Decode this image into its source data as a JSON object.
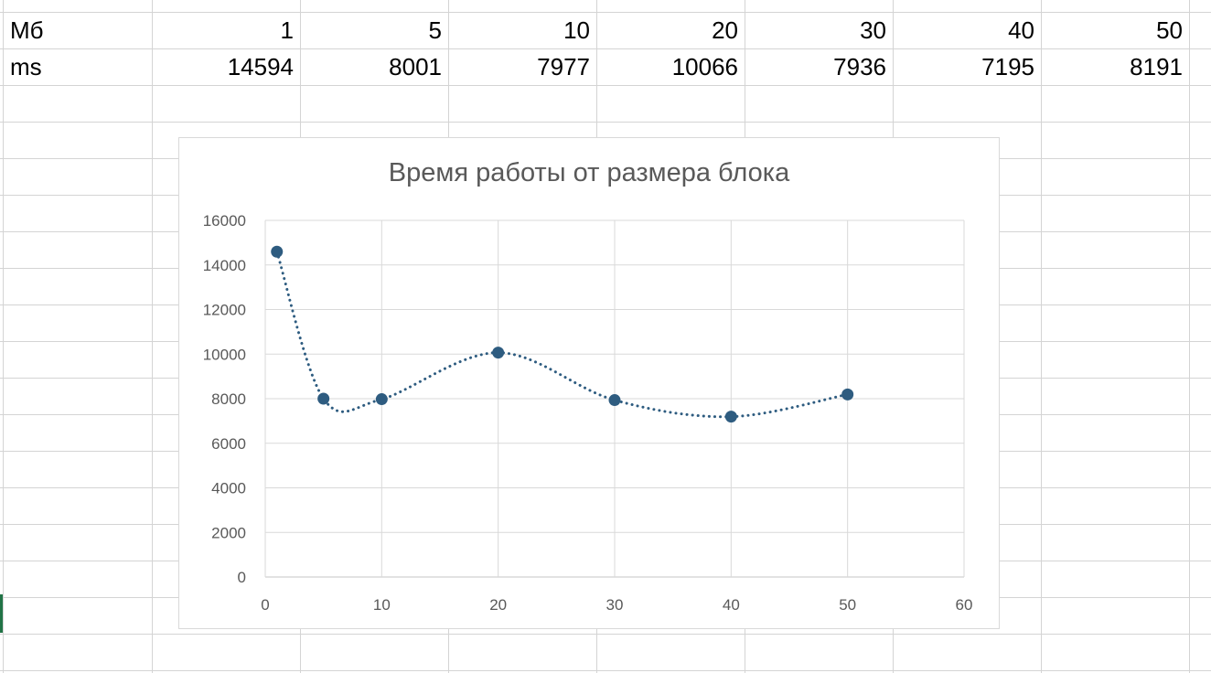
{
  "table": {
    "rows": [
      {
        "label": "Мб",
        "values": [
          "1",
          "5",
          "10",
          "20",
          "30",
          "40",
          "50"
        ]
      },
      {
        "label": "ms",
        "values": [
          "14594",
          "8001",
          "7977",
          "10066",
          "7936",
          "7195",
          "8191"
        ]
      }
    ]
  },
  "colors": {
    "series": "#2e5c80",
    "gridline": "#d9d9d9",
    "cell_border": "#d4d4d4",
    "text_gray": "#595959",
    "left_marker": "#217346"
  },
  "chart_data": {
    "type": "scatter",
    "title": "Время работы от размера блока",
    "xlabel": "",
    "ylabel": "",
    "xlim": [
      0,
      60
    ],
    "ylim": [
      0,
      16000
    ],
    "x_ticks": [
      "0",
      "10",
      "20",
      "30",
      "40",
      "50",
      "60"
    ],
    "y_ticks": [
      "0",
      "2000",
      "4000",
      "6000",
      "8000",
      "10000",
      "12000",
      "14000",
      "16000"
    ],
    "grid": true,
    "legend": "none",
    "line_style": "smooth dotted line with markers",
    "series": [
      {
        "x": [
          1,
          5,
          10,
          20,
          30,
          40,
          50
        ],
        "y": [
          14594,
          8001,
          7977,
          10066,
          7936,
          7195,
          8191
        ]
      }
    ]
  }
}
